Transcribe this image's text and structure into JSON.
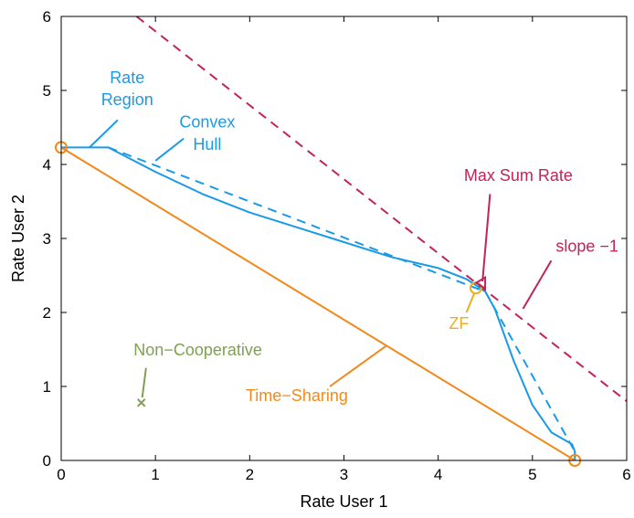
{
  "chart_data": {
    "type": "line",
    "title": "",
    "xlabel": "Rate User 1",
    "ylabel": "Rate User 2",
    "xlim": [
      0,
      6
    ],
    "ylim": [
      0,
      6
    ],
    "xticks": [
      "0",
      "1",
      "2",
      "3",
      "4",
      "5",
      "6"
    ],
    "yticks": [
      "0",
      "1",
      "2",
      "3",
      "4",
      "5",
      "6"
    ],
    "grid": false,
    "series": [
      {
        "key": "rate_region",
        "color": "#1a9ae6",
        "style": "solid",
        "x": [
          0,
          0.5,
          1.0,
          1.5,
          2.0,
          2.5,
          3.0,
          3.5,
          4.0,
          4.3,
          4.42,
          4.5,
          4.6,
          4.8,
          5.0,
          5.2,
          5.42,
          5.45,
          5.45
        ],
        "y": [
          4.23,
          4.23,
          3.9,
          3.6,
          3.35,
          3.15,
          2.95,
          2.75,
          2.6,
          2.45,
          2.35,
          2.28,
          2.05,
          1.35,
          0.75,
          0.38,
          0.22,
          0.12,
          0
        ]
      },
      {
        "key": "convex_hull",
        "color": "#1a9ae6",
        "style": "dashed",
        "x": [
          0.5,
          4.5,
          5.45
        ],
        "y": [
          4.23,
          2.28,
          0.12
        ]
      },
      {
        "key": "time_sharing",
        "color": "#f08a1c",
        "style": "solid",
        "x": [
          0,
          5.45
        ],
        "y": [
          4.23,
          0
        ]
      },
      {
        "key": "sum_rate_line",
        "color": "#c0245a",
        "style": "dashed",
        "x": [
          0.8,
          6.0
        ],
        "y": [
          6.0,
          0.8
        ]
      }
    ],
    "points": [
      {
        "key": "tdma_end_1",
        "x": 0,
        "y": 4.23,
        "marker": "circle",
        "color": "#f08a1c"
      },
      {
        "key": "tdma_end_2",
        "x": 5.45,
        "y": 0,
        "marker": "circle",
        "color": "#f08a1c"
      },
      {
        "key": "zf",
        "x": 4.4,
        "y": 2.33,
        "marker": "circle",
        "color": "#e8b020"
      },
      {
        "key": "max_sum_rate",
        "x": 4.45,
        "y": 2.4,
        "marker": "triangle-left",
        "color": "#c0245a"
      },
      {
        "key": "non_cooperative",
        "x": 0.85,
        "y": 0.78,
        "marker": "x",
        "color": "#7fa050"
      }
    ],
    "annotations": [
      {
        "key": "rate_region_l1",
        "text": "Rate",
        "x": 0.7,
        "y": 5.1,
        "color": "#1a9ae6",
        "anchor": "middle",
        "arrow": null
      },
      {
        "key": "rate_region_l2",
        "text": "Region",
        "x": 0.7,
        "y": 4.8,
        "color": "#1a9ae6",
        "anchor": "middle",
        "arrow": {
          "from": [
            0.6,
            4.6
          ],
          "to": [
            0.3,
            4.23
          ]
        }
      },
      {
        "key": "convex_hull_l1",
        "text": "Convex",
        "x": 1.55,
        "y": 4.5,
        "color": "#1a9ae6",
        "anchor": "middle",
        "arrow": null
      },
      {
        "key": "convex_hull_l2",
        "text": "Hull",
        "x": 1.55,
        "y": 4.2,
        "color": "#1a9ae6",
        "anchor": "middle",
        "arrow": {
          "from": [
            1.3,
            4.35
          ],
          "to": [
            1.0,
            4.05
          ]
        }
      },
      {
        "key": "max_sum_rate",
        "text": "Max Sum Rate",
        "x": 4.85,
        "y": 3.78,
        "color": "#c0245a",
        "anchor": "middle",
        "arrow": {
          "from": [
            4.55,
            3.6
          ],
          "to": [
            4.47,
            2.42
          ]
        }
      },
      {
        "key": "slope",
        "text": "slope −1",
        "x": 5.58,
        "y": 2.82,
        "color": "#c0245a",
        "anchor": "middle",
        "arrow": {
          "from": [
            5.2,
            2.7
          ],
          "to": [
            4.9,
            2.05
          ]
        }
      },
      {
        "key": "zf",
        "text": "ZF",
        "x": 4.22,
        "y": 1.78,
        "color": "#e8b020",
        "anchor": "middle",
        "arrow": {
          "from": [
            4.3,
            2.0
          ],
          "to": [
            4.38,
            2.25
          ]
        }
      },
      {
        "key": "non_cooperative",
        "text": "Non−Cooperative",
        "x": 1.45,
        "y": 1.42,
        "color": "#7fa050",
        "anchor": "middle",
        "arrow": {
          "from": [
            0.9,
            1.25
          ],
          "to": [
            0.86,
            0.85
          ]
        }
      },
      {
        "key": "time_sharing",
        "text": "Time−Sharing",
        "x": 2.5,
        "y": 0.8,
        "color": "#f08a1c",
        "anchor": "middle",
        "arrow": {
          "from": [
            2.85,
            1.0
          ],
          "to": [
            3.45,
            1.55
          ]
        }
      }
    ]
  }
}
